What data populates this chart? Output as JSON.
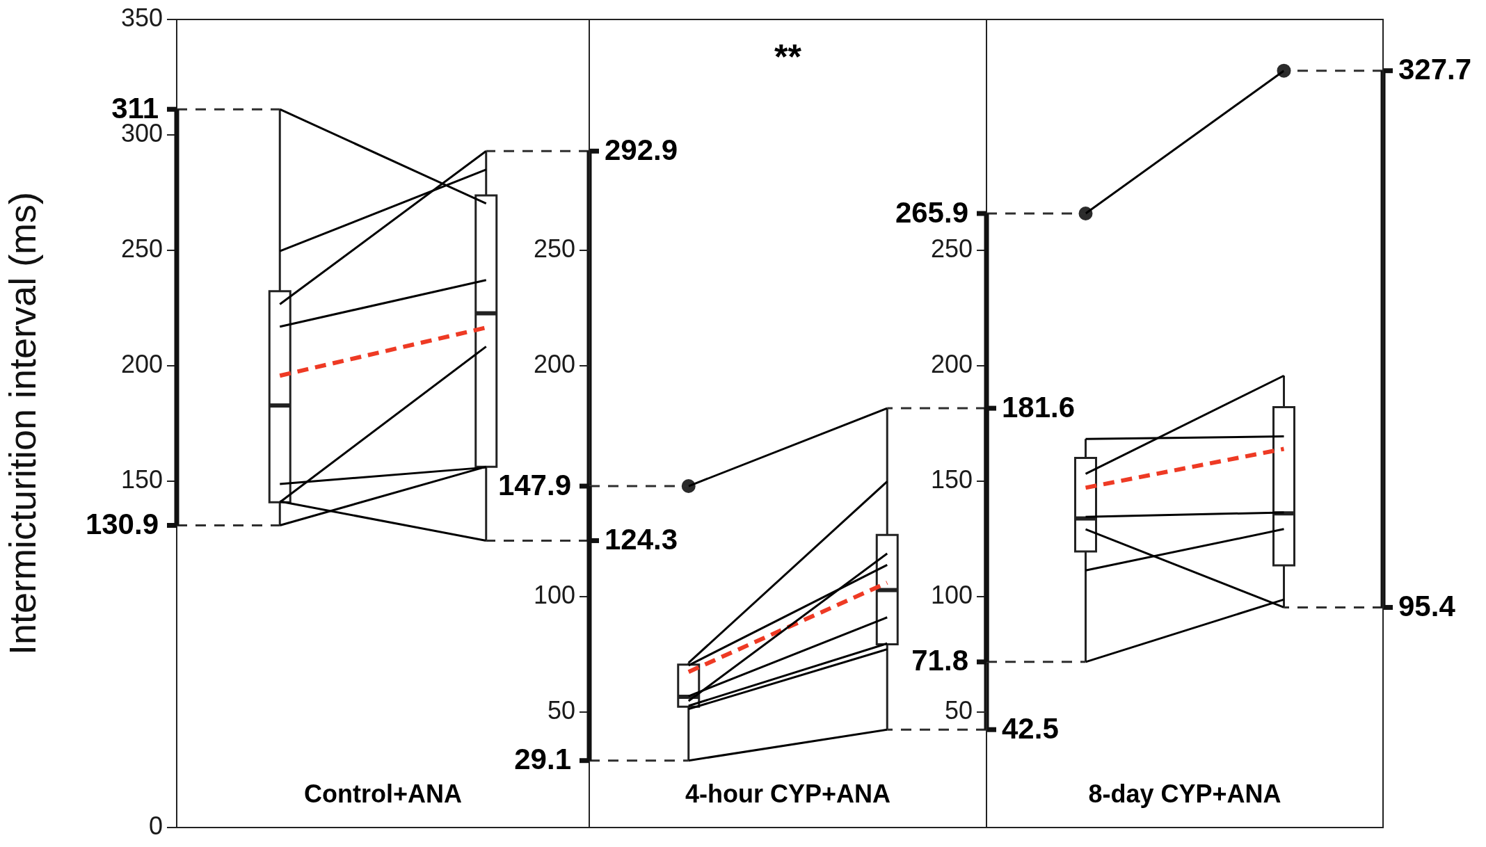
{
  "chart_data": [
    {
      "type": "box",
      "xlabel": "Control+ANA",
      "ylabel": "Intermicturition interval (ms)",
      "categories": [
        null,
        null
      ],
      "tick_labels": "y",
      "ylim": [
        0,
        350
      ],
      "yticks": [
        0,
        150,
        200,
        250,
        300,
        350
      ],
      "boxes": [
        {
          "low": 130.9,
          "q1": 140.9,
          "median": 182.8,
          "q3": 232.3,
          "high": 311
        },
        {
          "low": 124.3,
          "q1": 156.3,
          "median": 222.7,
          "q3": 273.7,
          "high": 292.9
        }
      ],
      "series": [
        {
          "type": "line",
          "color": "#000000",
          "values": [
            311,
            270.2
          ]
        },
        {
          "type": "line",
          "color": "#000000",
          "values": [
            249.6,
            284.9
          ]
        },
        {
          "type": "line",
          "color": "#000000",
          "values": [
            226.6,
            292.9
          ]
        },
        {
          "type": "line",
          "color": "#000000",
          "values": [
            216.9,
            237.1
          ]
        },
        {
          "type": "line",
          "color": "#000000",
          "values": [
            140.9,
            208.3
          ]
        },
        {
          "type": "line",
          "color": "#000000",
          "values": [
            148.8,
            156
          ]
        },
        {
          "type": "line",
          "color": "#000000",
          "values": [
            130.9,
            156.3
          ]
        },
        {
          "type": "line",
          "color": "#000000",
          "values": [
            141.3,
            124.3
          ]
        },
        {
          "type": "line",
          "color": "#ee3a24",
          "line_style": "dashed",
          "values": [
            195.7,
            216.5
          ]
        }
      ],
      "annotations": [
        "311",
        "130.9",
        "292.9",
        "124.3"
      ]
    },
    {
      "type": "box",
      "xlabel": "4-hour CYP+ANA",
      "categories": [
        null,
        null
      ],
      "tick_labels": "y",
      "ylim": [
        0,
        350
      ],
      "yticks": [
        50,
        100,
        200,
        250
      ],
      "boxes": [
        {
          "low": 29.1,
          "q1": 52.4,
          "median": 56.7,
          "q3": 70.6,
          "high": 71.4,
          "outliers": [
            147.9
          ]
        },
        {
          "low": 42.5,
          "q1": 79.4,
          "median": 102.9,
          "q3": 126.8,
          "high": 181.6
        }
      ],
      "series": [
        {
          "type": "line",
          "color": "#000000",
          "values": [
            147.9,
            181.6
          ]
        },
        {
          "type": "line",
          "color": "#000000",
          "values": [
            71.4,
            149.9
          ]
        },
        {
          "type": "line",
          "color": "#000000",
          "values": [
            70.3,
            113.8
          ]
        },
        {
          "type": "line",
          "color": "#000000",
          "values": [
            57,
            91.1
          ]
        },
        {
          "type": "line",
          "color": "#000000",
          "values": [
            54.9,
            118.7
          ]
        },
        {
          "type": "line",
          "color": "#000000",
          "values": [
            52.8,
            79.8
          ]
        },
        {
          "type": "line",
          "color": "#000000",
          "values": [
            51.4,
            77.3
          ]
        },
        {
          "type": "line",
          "color": "#000000",
          "values": [
            29.1,
            42.5
          ]
        },
        {
          "type": "line",
          "color": "#ee3a24",
          "line_style": "dashed",
          "values": [
            67.5,
            106.1
          ]
        }
      ],
      "annotations": [
        "147.9",
        "29.1",
        "181.6",
        "42.5",
        "**"
      ]
    },
    {
      "type": "box",
      "xlabel": "8-day CYP+ANA",
      "categories": [
        null,
        null
      ],
      "tick_labels": "y",
      "ylim": [
        0,
        350
      ],
      "yticks": [
        50,
        100,
        150,
        200,
        250
      ],
      "boxes": [
        {
          "low": 71.8,
          "q1": 119.6,
          "median": 133.9,
          "q3": 160.1,
          "high": 168.3,
          "outliers": [
            265.9
          ]
        },
        {
          "low": 95.4,
          "q1": 113.6,
          "median": 136.1,
          "q3": 182.1,
          "high": 195.7,
          "outliers": [
            327.7
          ]
        }
      ],
      "series": [
        {
          "type": "line",
          "color": "#000000",
          "values": [
            265.9,
            327.7
          ]
        },
        {
          "type": "line",
          "color": "#000000",
          "values": [
            168.3,
            169.4
          ]
        },
        {
          "type": "line",
          "color": "#000000",
          "values": [
            153.2,
            195.7
          ]
        },
        {
          "type": "line",
          "color": "#000000",
          "values": [
            134.6,
            136.5
          ]
        },
        {
          "type": "line",
          "color": "#000000",
          "values": [
            129.2,
            95.4
          ]
        },
        {
          "type": "line",
          "color": "#000000",
          "values": [
            111.4,
            129.3
          ]
        },
        {
          "type": "line",
          "color": "#000000",
          "values": [
            71.8,
            98.8
          ]
        },
        {
          "type": "line",
          "color": "#ee3a24",
          "line_style": "dashed",
          "values": [
            147.2,
            164
          ]
        }
      ],
      "annotations": [
        "265.9",
        "71.8",
        "327.7",
        "95.4"
      ]
    }
  ]
}
